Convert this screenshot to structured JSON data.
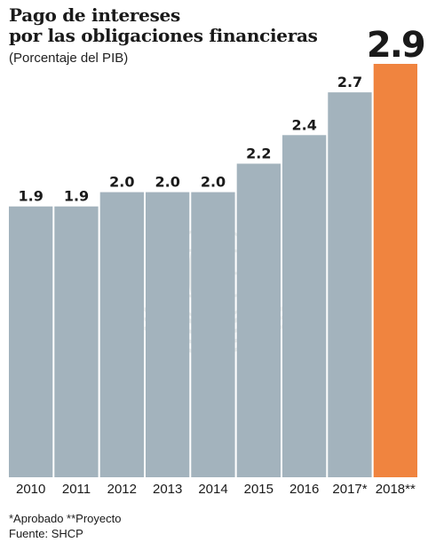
{
  "chart_data": {
    "type": "bar",
    "title_lines": [
      "Pago de intereses",
      "por las obligaciones financieras"
    ],
    "subtitle": "(Porcentaje del PIB)",
    "categories": [
      "2010",
      "2011",
      "2012",
      "2013",
      "2014",
      "2015",
      "2016",
      "2017*",
      "2018**"
    ],
    "values": [
      1.9,
      1.9,
      2.0,
      2.0,
      2.0,
      2.2,
      2.4,
      2.7,
      2.9
    ],
    "value_labels": [
      "1.9",
      "1.9",
      "2.0",
      "2.0",
      "2.0",
      "2.2",
      "2.4",
      "2.7",
      "2.9"
    ],
    "ylim": [
      0,
      2.9
    ],
    "grid": false,
    "bar_color": "#a3b3bd",
    "highlight_color": "#f0843f",
    "highlight_index": 8
  },
  "footnotes": [
    "*Aprobado **Proyecto",
    "Fuente: SHCP"
  ]
}
